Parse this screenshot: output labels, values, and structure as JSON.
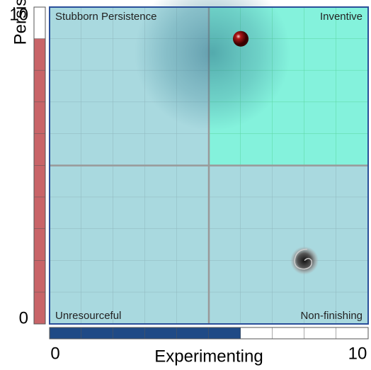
{
  "chart_data": {
    "type": "scatter",
    "xlabel": "Experimenting",
    "ylabel": "Persistent",
    "xlim": [
      0,
      10
    ],
    "ylim": [
      0,
      10
    ],
    "xticks": [
      0,
      10
    ],
    "yticks": [
      0,
      10
    ],
    "quadrant_labels": {
      "top_left": "Stubborn Persistence",
      "top_right": "Inventive",
      "bottom_left": "Unresourceful",
      "bottom_right": "Non-finishing"
    },
    "x": [
      6,
      8
    ],
    "values": [
      9,
      2
    ],
    "x_bar_color": "#1f4a86",
    "y_bar_color": "#c86468",
    "grid": true
  }
}
